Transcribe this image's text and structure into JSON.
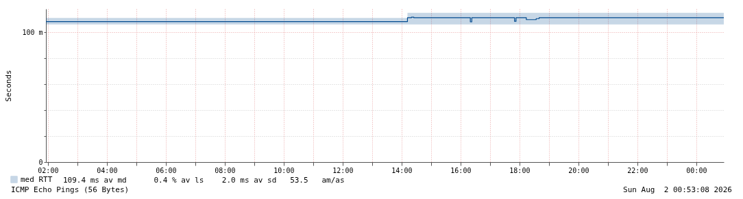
{
  "chart_data": {
    "type": "step",
    "ylabel": "Seconds",
    "legend": "bottom left",
    "grid": true,
    "line_style": "solid",
    "x": [
      "2026-08-01T01:56",
      "2026-08-01T14:12",
      "2026-08-01T14:20",
      "2026-08-01T14:25",
      "2026-08-01T16:19",
      "2026-08-01T16:20",
      "2026-08-01T16:23",
      "2026-08-01T17:50",
      "2026-08-01T17:53",
      "2026-08-01T18:14",
      "2026-08-01T18:34",
      "2026-08-01T18:40",
      "2026-08-02T00:56"
    ],
    "series": [
      {
        "name": "med RTT",
        "color": "#004a8f",
        "values": [
          108.2,
          111.2,
          111.6,
          111.2,
          111.2,
          108,
          111.2,
          108.4,
          111.2,
          109.7,
          110.5,
          111.2,
          111.2
        ],
        "lower": [
          106,
          106,
          106,
          106,
          106,
          106,
          106,
          106,
          106,
          106,
          106,
          106,
          106
        ],
        "upper": [
          111,
          115,
          115,
          115,
          115,
          115,
          115,
          115,
          115,
          115,
          115,
          115,
          115
        ]
      }
    ],
    "ylim": [
      0,
      118
    ],
    "yticks": [
      0,
      {
        "value": 20,
        "label": null
      },
      {
        "value": 40,
        "label": null
      },
      {
        "value": 60,
        "label": null
      },
      {
        "value": 80,
        "label": null
      },
      {
        "value": 100,
        "label": "100 m"
      }
    ],
    "xlim": [
      "2026-08-01T01:56",
      "2026-08-02T00:56"
    ],
    "xticks": [
      {
        "value": "2026-08-01T02:00",
        "label": "02:00"
      },
      {
        "value": "2026-08-01T03:00",
        "label": null
      },
      {
        "value": "2026-08-01T04:00",
        "label": "04:00"
      },
      {
        "value": "2026-08-01T05:00",
        "label": null
      },
      {
        "value": "2026-08-01T06:00",
        "label": "06:00"
      },
      {
        "value": "2026-08-01T07:00",
        "label": null
      },
      {
        "value": "2026-08-01T08:00",
        "label": "08:00"
      },
      {
        "value": "2026-08-01T09:00",
        "label": null
      },
      {
        "value": "2026-08-01T10:00",
        "label": "10:00"
      },
      {
        "value": "2026-08-01T11:00",
        "label": null
      },
      {
        "value": "2026-08-01T12:00",
        "label": "12:00"
      },
      {
        "value": "2026-08-01T13:00",
        "label": null
      },
      {
        "value": "2026-08-01T14:00",
        "label": "14:00"
      },
      {
        "value": "2026-08-01T15:00",
        "label": null
      },
      {
        "value": "2026-08-01T16:00",
        "label": "16:00"
      },
      {
        "value": "2026-08-01T17:00",
        "label": null
      },
      {
        "value": "2026-08-01T18:00",
        "label": "18:00"
      },
      {
        "value": "2026-08-01T19:00",
        "label": null
      },
      {
        "value": "2026-08-01T20:00",
        "label": "20:00"
      },
      {
        "value": "2026-08-01T21:00",
        "label": null
      },
      {
        "value": "2026-08-01T22:00",
        "label": "22:00"
      },
      {
        "value": "2026-08-01T23:00",
        "label": null
      },
      {
        "value": "2026-08-02T00:00",
        "label": "00:00"
      }
    ],
    "annotations": [
      "109.4 ms av md      0.4 % av ls    2.0 ms av sd   53.5   am/as",
      "ICMP Echo Pings (56 Bytes)",
      "Sun Aug  2 00:53:08 2026"
    ]
  }
}
